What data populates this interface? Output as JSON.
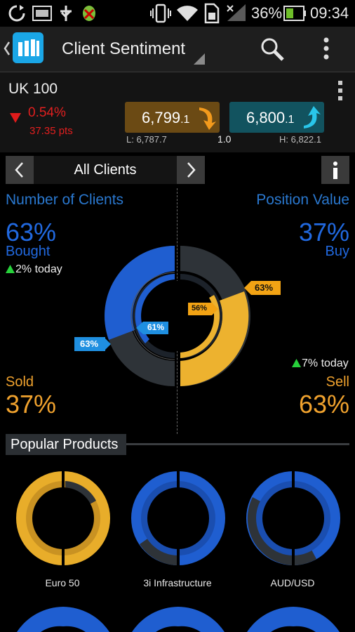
{
  "status_bar": {
    "battery": "36%",
    "time": "09:34"
  },
  "app": {
    "title": "Client Sentiment"
  },
  "instrument": {
    "name": "UK 100",
    "change_pct": "0.54%",
    "change_pts": "37.35 pts",
    "sell_price_main": "6,799",
    "sell_price_frac": ".1",
    "buy_price_main": "6,800",
    "buy_price_frac": ".1",
    "low": "L: 6,787.7",
    "spread": "1.0",
    "high": "H: 6,822.1"
  },
  "selector": {
    "label": "All Clients"
  },
  "sentiment": {
    "left_title": "Number of Clients",
    "right_title": "Position Value",
    "bought_pct": "63%",
    "bought_label": "Bought",
    "bought_today": "2% today",
    "sold_label": "Sold",
    "sold_pct": "37%",
    "buy_pct": "37%",
    "buy_label": "Buy",
    "sell_today": "7% today",
    "sell_label": "Sell",
    "sell_pct": "63%",
    "tag_outer_left": "63%",
    "tag_inner_left": "61%",
    "tag_outer_right": "63%",
    "tag_inner_right": "56%"
  },
  "popular": {
    "title": "Popular Products",
    "items": [
      {
        "label": "Euro 50"
      },
      {
        "label": "3i Infrastructure"
      },
      {
        "label": "AUD/USD"
      }
    ]
  },
  "colors": {
    "blue": "#1f66d9",
    "gold": "#f2b12c",
    "grey": "#2e3338",
    "accent_cyan": "#1aa6e6"
  }
}
